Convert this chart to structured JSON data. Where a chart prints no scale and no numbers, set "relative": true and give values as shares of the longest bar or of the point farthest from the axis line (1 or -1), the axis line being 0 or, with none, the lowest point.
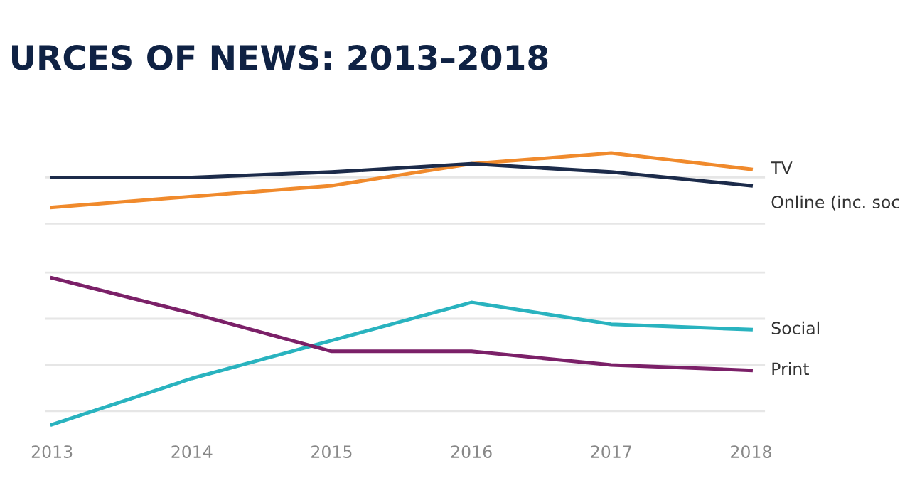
{
  "chart_data": {
    "type": "line",
    "title": "URCES OF NEWS: 2013–2018",
    "relative": true,
    "ref_lines": [
      {
        "axis": "y",
        "value": 0.05,
        "color": "#e6e6e6"
      },
      {
        "axis": "y",
        "value": 0.22,
        "color": "#e6e6e6"
      },
      {
        "axis": "y",
        "value": 0.39,
        "color": "#e6e6e6"
      },
      {
        "axis": "y",
        "value": 0.56,
        "color": "#e6e6e6"
      },
      {
        "axis": "y",
        "value": 0.74,
        "color": "#e6e6e6"
      },
      {
        "axis": "y",
        "value": 0.91,
        "color": "#e6e6e6"
      }
    ],
    "legend": false,
    "marker": "none",
    "line_style": "solid",
    "categories": [
      "2013",
      "2014",
      "2015",
      "2016",
      "2017",
      "2018"
    ],
    "series": [
      {
        "name": "TV",
        "color": "#f08a2c",
        "values": [
          0.8,
          0.84,
          0.88,
          0.96,
          1.0,
          0.94
        ]
      },
      {
        "name": "Online (inc. soc",
        "color": "#1c2b4a",
        "values": [
          0.91,
          0.91,
          0.93,
          0.96,
          0.93,
          0.88
        ]
      },
      {
        "name": "Social",
        "color": "#29b3bf",
        "values": [
          0,
          0.17,
          0.31,
          0.45,
          0.37,
          0.35
        ]
      },
      {
        "name": "Print",
        "color": "#7b2068",
        "values": [
          0.54,
          0.41,
          0.27,
          0.27,
          0.22,
          0.2
        ]
      }
    ]
  }
}
